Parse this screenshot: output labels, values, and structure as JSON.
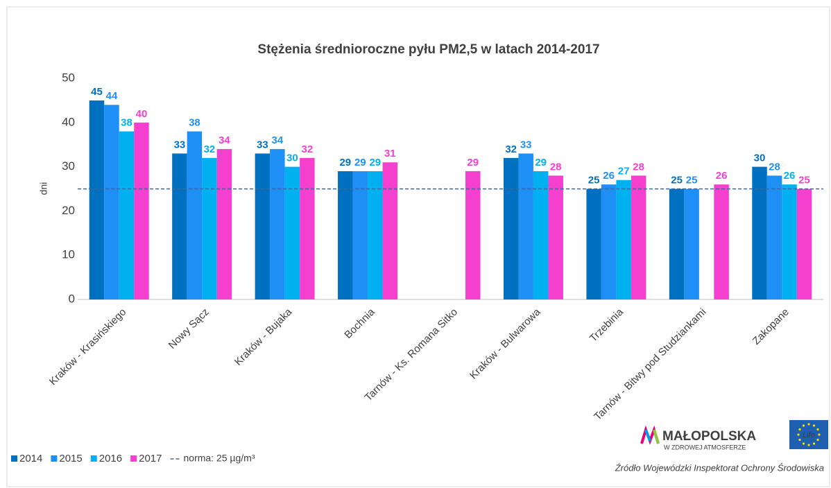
{
  "chart_data": {
    "type": "bar",
    "title": "Stężenia średnioroczne pyłu PM2,5 w latach 2014-2017",
    "ylabel": "dni",
    "categories": [
      "Kraków - Krasińskiego",
      "Nowy Sącz",
      "Kraków - Bujaka",
      "Bochnia",
      "Tarnów - Ks. Romana Sitko",
      "Kraków - Bulwarowa",
      "Trzebinia",
      "Tarnów - Bitwy pod Studziankami",
      "Zakopane"
    ],
    "series": [
      {
        "name": "2014",
        "color": "#0070c0",
        "values": [
          45,
          33,
          33,
          29,
          null,
          32,
          25,
          25,
          30
        ]
      },
      {
        "name": "2015",
        "color": "#1e90f5",
        "values": [
          44,
          38,
          34,
          29,
          null,
          33,
          26,
          25,
          28
        ]
      },
      {
        "name": "2016",
        "color": "#00b0f0",
        "values": [
          38,
          32,
          30,
          29,
          null,
          29,
          27,
          null,
          26
        ]
      },
      {
        "name": "2017",
        "color": "#f43fcf",
        "values": [
          40,
          34,
          32,
          31,
          29,
          28,
          28,
          26,
          25
        ]
      }
    ],
    "reference": {
      "value": 25,
      "label": "norma: 25 µg/m³",
      "color": "#44679a"
    },
    "ylim": [
      0,
      50
    ],
    "yticks": [
      0,
      10,
      20,
      30,
      40,
      50
    ],
    "grid": false,
    "logo": {
      "name": "MAŁOPOLSKA",
      "tagline": "W ZDROWEJ ATMOSFERZE",
      "eu_label": "Life"
    },
    "source": "Źródło Wojewódzki Inspektorat Ochrony Środowiska"
  }
}
